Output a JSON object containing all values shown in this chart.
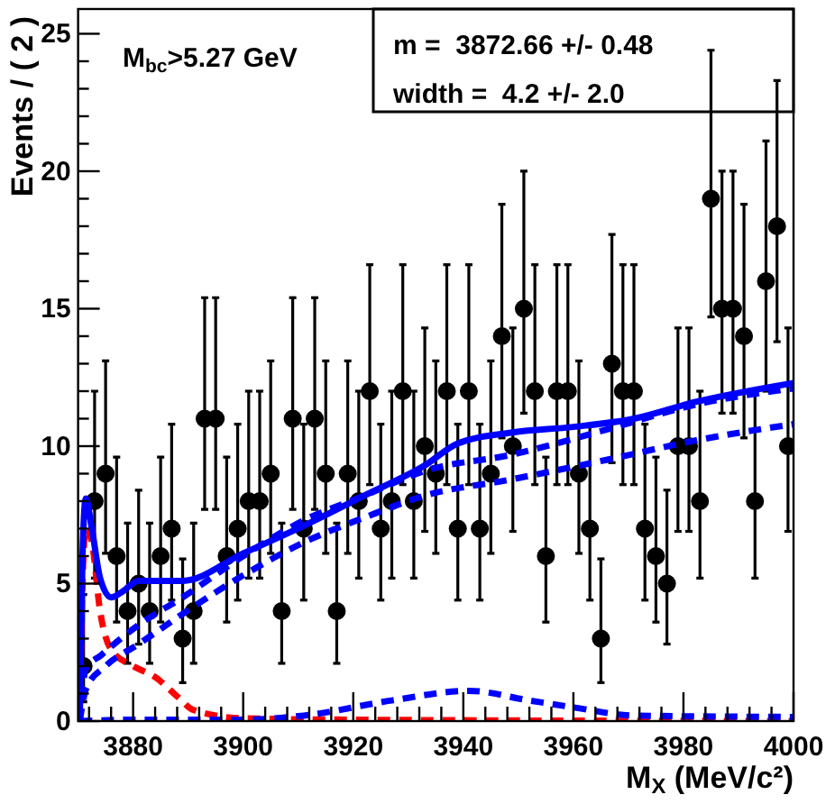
{
  "chart_data": {
    "type": "scatter",
    "xlabel": "M$_{X}$ (MeV/c²)",
    "ylabel": "Events / ( 2 )",
    "annotations": [
      "M$_{bc}$>5.27 GeV",
      "m =  3872.66 +/- 0.48",
      "width =  4.2 +/- 2.0"
    ],
    "xlim": [
      3870,
      4000
    ],
    "ylim": [
      0,
      25.9
    ],
    "xticks": [
      {
        "value": 3872,
        "label": null
      },
      {
        "value": 3876,
        "label": null
      },
      3880,
      {
        "value": 3884,
        "label": null
      },
      {
        "value": 3888,
        "label": null
      },
      {
        "value": 3892,
        "label": null
      },
      {
        "value": 3896,
        "label": null
      },
      3900,
      {
        "value": 3904,
        "label": null
      },
      {
        "value": 3908,
        "label": null
      },
      {
        "value": 3912,
        "label": null
      },
      {
        "value": 3916,
        "label": null
      },
      3920,
      {
        "value": 3924,
        "label": null
      },
      {
        "value": 3928,
        "label": null
      },
      {
        "value": 3932,
        "label": null
      },
      {
        "value": 3936,
        "label": null
      },
      3940,
      {
        "value": 3944,
        "label": null
      },
      {
        "value": 3948,
        "label": null
      },
      {
        "value": 3952,
        "label": null
      },
      {
        "value": 3956,
        "label": null
      },
      3960,
      {
        "value": 3964,
        "label": null
      },
      {
        "value": 3968,
        "label": null
      },
      {
        "value": 3972,
        "label": null
      },
      {
        "value": 3976,
        "label": null
      },
      3980,
      {
        "value": 3984,
        "label": null
      },
      {
        "value": 3988,
        "label": null
      },
      {
        "value": 3992,
        "label": null
      },
      {
        "value": 3996,
        "label": null
      },
      4000
    ],
    "yticks": [
      0,
      {
        "value": 1,
        "label": null
      },
      {
        "value": 2,
        "label": null
      },
      {
        "value": 3,
        "label": null
      },
      {
        "value": 4,
        "label": null
      },
      5,
      {
        "value": 6,
        "label": null
      },
      {
        "value": 7,
        "label": null
      },
      {
        "value": 8,
        "label": null
      },
      {
        "value": 9,
        "label": null
      },
      10,
      {
        "value": 11,
        "label": null
      },
      {
        "value": 12,
        "label": null
      },
      {
        "value": 13,
        "label": null
      },
      {
        "value": 14,
        "label": null
      },
      15,
      {
        "value": 16,
        "label": null
      },
      {
        "value": 17,
        "label": null
      },
      {
        "value": 18,
        "label": null
      },
      {
        "value": 19,
        "label": null
      },
      20,
      {
        "value": 21,
        "label": null
      },
      {
        "value": 22,
        "label": null
      },
      {
        "value": 23,
        "label": null
      },
      {
        "value": 24,
        "label": null
      },
      25
    ],
    "series": [
      {
        "color": "#000000",
        "marker": "circle",
        "x": [
          3871,
          3873,
          3875,
          3877,
          3879,
          3881,
          3883,
          3885,
          3887,
          3889,
          3891,
          3893,
          3895,
          3897,
          3899,
          3901,
          3903,
          3905,
          3907,
          3909,
          3911,
          3913,
          3915,
          3917,
          3919,
          3921,
          3923,
          3925,
          3927,
          3929,
          3931,
          3933,
          3935,
          3937,
          3939,
          3941,
          3943,
          3945,
          3947,
          3949,
          3951,
          3953,
          3955,
          3957,
          3959,
          3961,
          3963,
          3965,
          3967,
          3969,
          3971,
          3973,
          3975,
          3977,
          3979,
          3981,
          3983,
          3985,
          3987,
          3989,
          3991,
          3993,
          3995,
          3997,
          3999
        ],
        "values": [
          2,
          8,
          9,
          6,
          4,
          5,
          4,
          6,
          7,
          3,
          4,
          11,
          11,
          6,
          7,
          8,
          8,
          9,
          4,
          11,
          7,
          11,
          9,
          4,
          9,
          8,
          12,
          7,
          8,
          12,
          8,
          10,
          9,
          12,
          7,
          12,
          7,
          9,
          14,
          10,
          15,
          12,
          6,
          12,
          12,
          9,
          7,
          3,
          13,
          12,
          12,
          7,
          6,
          5,
          10,
          10,
          8,
          19,
          15,
          15,
          14,
          8,
          16,
          18,
          10
        ],
        "errors": [
          [
            0.7,
            4.6
          ],
          [
            5.2,
            12.0
          ],
          [
            6.1,
            13.1
          ],
          [
            3.6,
            9.6
          ],
          [
            2.1,
            7.2
          ],
          [
            2.8,
            8.4
          ],
          [
            2.1,
            7.2
          ],
          [
            3.6,
            9.6
          ],
          [
            4.4,
            10.8
          ],
          [
            1.4,
            5.9
          ],
          [
            2.1,
            7.2
          ],
          [
            7.7,
            15.4
          ],
          [
            7.7,
            15.4
          ],
          [
            3.6,
            9.6
          ],
          [
            4.4,
            10.8
          ],
          [
            5.2,
            12.0
          ],
          [
            5.2,
            12.0
          ],
          [
            6.1,
            13.1
          ],
          [
            2.1,
            7.2
          ],
          [
            7.7,
            15.4
          ],
          [
            4.4,
            10.8
          ],
          [
            7.7,
            15.4
          ],
          [
            6.1,
            13.1
          ],
          [
            2.1,
            7.2
          ],
          [
            6.1,
            13.1
          ],
          [
            5.2,
            12.0
          ],
          [
            8.6,
            16.6
          ],
          [
            4.4,
            10.8
          ],
          [
            5.2,
            12.0
          ],
          [
            8.6,
            16.6
          ],
          [
            5.2,
            12.0
          ],
          [
            6.9,
            14.3
          ],
          [
            6.1,
            13.1
          ],
          [
            8.6,
            16.6
          ],
          [
            4.4,
            10.8
          ],
          [
            8.6,
            16.6
          ],
          [
            4.4,
            10.8
          ],
          [
            6.1,
            13.1
          ],
          [
            10.3,
            18.8
          ],
          [
            6.9,
            14.3
          ],
          [
            11.2,
            20.0
          ],
          [
            8.6,
            16.6
          ],
          [
            3.6,
            9.6
          ],
          [
            8.6,
            16.6
          ],
          [
            8.6,
            16.6
          ],
          [
            6.1,
            13.1
          ],
          [
            4.4,
            10.8
          ],
          [
            1.4,
            5.9
          ],
          [
            9.4,
            17.7
          ],
          [
            8.6,
            16.6
          ],
          [
            8.6,
            16.6
          ],
          [
            4.4,
            10.8
          ],
          [
            3.6,
            9.6
          ],
          [
            2.8,
            8.4
          ],
          [
            6.9,
            14.3
          ],
          [
            6.9,
            14.3
          ],
          [
            5.2,
            12.0
          ],
          [
            14.7,
            24.4
          ],
          [
            11.2,
            20.0
          ],
          [
            11.2,
            20.0
          ],
          [
            10.3,
            18.8
          ],
          [
            5.2,
            12.0
          ],
          [
            12.0,
            21.1
          ],
          [
            13.8,
            23.3
          ],
          [
            6.9,
            14.3
          ]
        ]
      },
      {
        "type": "line",
        "color": "#ff0000",
        "line_style": "dashed",
        "x": [
          3870.3,
          3870.8,
          3871.4,
          3872.5,
          3874,
          3876,
          3880,
          3884,
          3888,
          3891,
          3900,
          3920,
          4000
        ],
        "values": [
          0,
          5,
          7,
          6.5,
          4,
          2.6,
          2,
          1.6,
          0.9,
          0.4,
          0.1,
          0.05,
          0
        ]
      },
      {
        "type": "line",
        "color": "#0000ff",
        "line_style": "dashed",
        "x": [
          3870.3,
          3880,
          3900,
          3911,
          3927,
          3941,
          3952,
          3960,
          3971,
          4000
        ],
        "values": [
          0,
          0.05,
          0.05,
          0.2,
          0.75,
          1.1,
          0.75,
          0.5,
          0.2,
          0.15
        ]
      },
      {
        "type": "line",
        "color": "#0000ff",
        "line_style": "dashed",
        "x": [
          3870.3,
          3871.5,
          3875,
          3881,
          3889,
          3900,
          3911,
          3922,
          3933,
          3949,
          3966,
          3982,
          4000
        ],
        "values": [
          0,
          1.2,
          2,
          2.8,
          3.9,
          5.3,
          6.5,
          7.4,
          8.2,
          8.8,
          9.5,
          10.2,
          10.8
        ]
      },
      {
        "type": "line",
        "color": "#0000ff",
        "line_style": "dashed",
        "x": [
          3870.3,
          3871.4,
          3874.2,
          3881,
          3889,
          3900,
          3911,
          3922,
          3933,
          3949,
          3966,
          3982,
          4000
        ],
        "values": [
          0,
          1.9,
          2.4,
          3.5,
          4.5,
          6,
          7.3,
          8.2,
          9.1,
          9.7,
          10.6,
          11.5,
          12.1
        ]
      },
      {
        "type": "line",
        "color": "#0000ff",
        "line_style": "solid",
        "x": [
          3870.3,
          3870.8,
          3871.4,
          3872.5,
          3874,
          3876,
          3878,
          3881,
          3889,
          3900,
          3911,
          3922,
          3933,
          3939,
          3949,
          3960,
          3971,
          3982,
          4000
        ],
        "values": [
          0,
          6,
          8.1,
          7,
          5.2,
          4.5,
          4.7,
          5.1,
          5.1,
          6.1,
          7.1,
          8.2,
          9.3,
          10.1,
          10.5,
          10.7,
          11,
          11.6,
          12.3
        ]
      }
    ]
  }
}
